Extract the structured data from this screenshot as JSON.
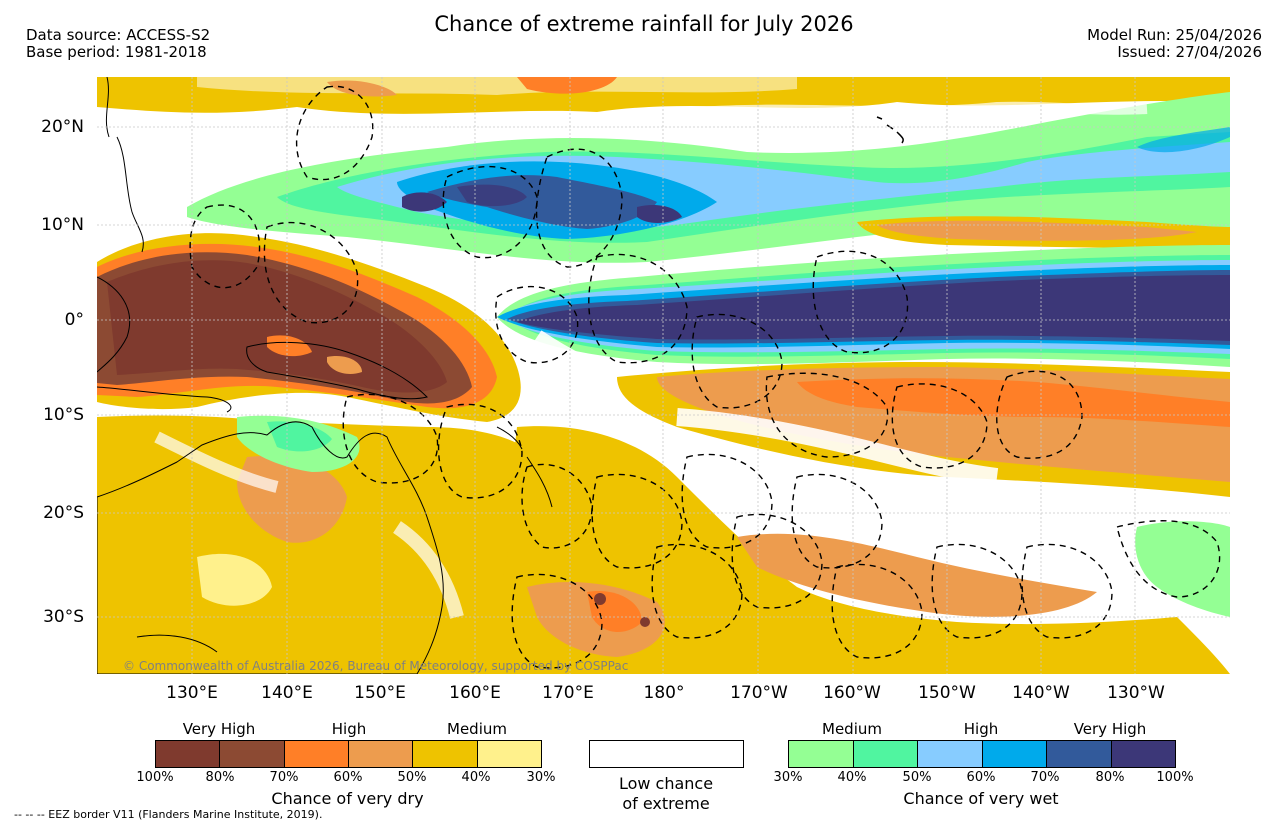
{
  "header": {
    "title": "Chance of extreme rainfall for July 2026",
    "data_source": "Data source: ACCESS-S2",
    "base_period": "Base period: 1981-2018",
    "model_run": "Model Run: 25/04/2026",
    "issued": "Issued: 27/04/2026"
  },
  "map": {
    "lat_labels": [
      "20°N",
      "10°N",
      "0°",
      "10°S",
      "20°S",
      "30°S"
    ],
    "lon_labels": [
      "130°E",
      "140°E",
      "150°E",
      "160°E",
      "170°E",
      "180°",
      "170°W",
      "160°W",
      "150°W",
      "140°W",
      "130°W"
    ],
    "copyright": "© Commonwealth of Australia 2026, Bureau of Meteorology, supported by COSPPac"
  },
  "legend_dry": {
    "levels": [
      "Very High",
      "High",
      "Medium"
    ],
    "ticks": [
      "100%",
      "80%",
      "70%",
      "60%",
      "50%",
      "40%",
      "30%"
    ],
    "colors": [
      "#7f3a2e",
      "#8c4a33",
      "#ff7f27",
      "#ed9c4e",
      "#eec300",
      "#fff18c"
    ],
    "label": "Chance of very dry"
  },
  "legend_low": {
    "line1": "Low chance",
    "line2": "of extreme"
  },
  "legend_wet": {
    "levels": [
      "Medium",
      "High",
      "Very High"
    ],
    "ticks": [
      "30%",
      "40%",
      "50%",
      "60%",
      "70%",
      "80%",
      "100%"
    ],
    "colors": [
      "#94ff94",
      "#50f5a0",
      "#87ccff",
      "#00aaeb",
      "#325a9b",
      "#3c3778"
    ],
    "label": "Chance of very wet"
  },
  "footer": {
    "eez": "--  --  -- EEZ border V11 (Flanders Marine Institute, 2019)."
  }
}
